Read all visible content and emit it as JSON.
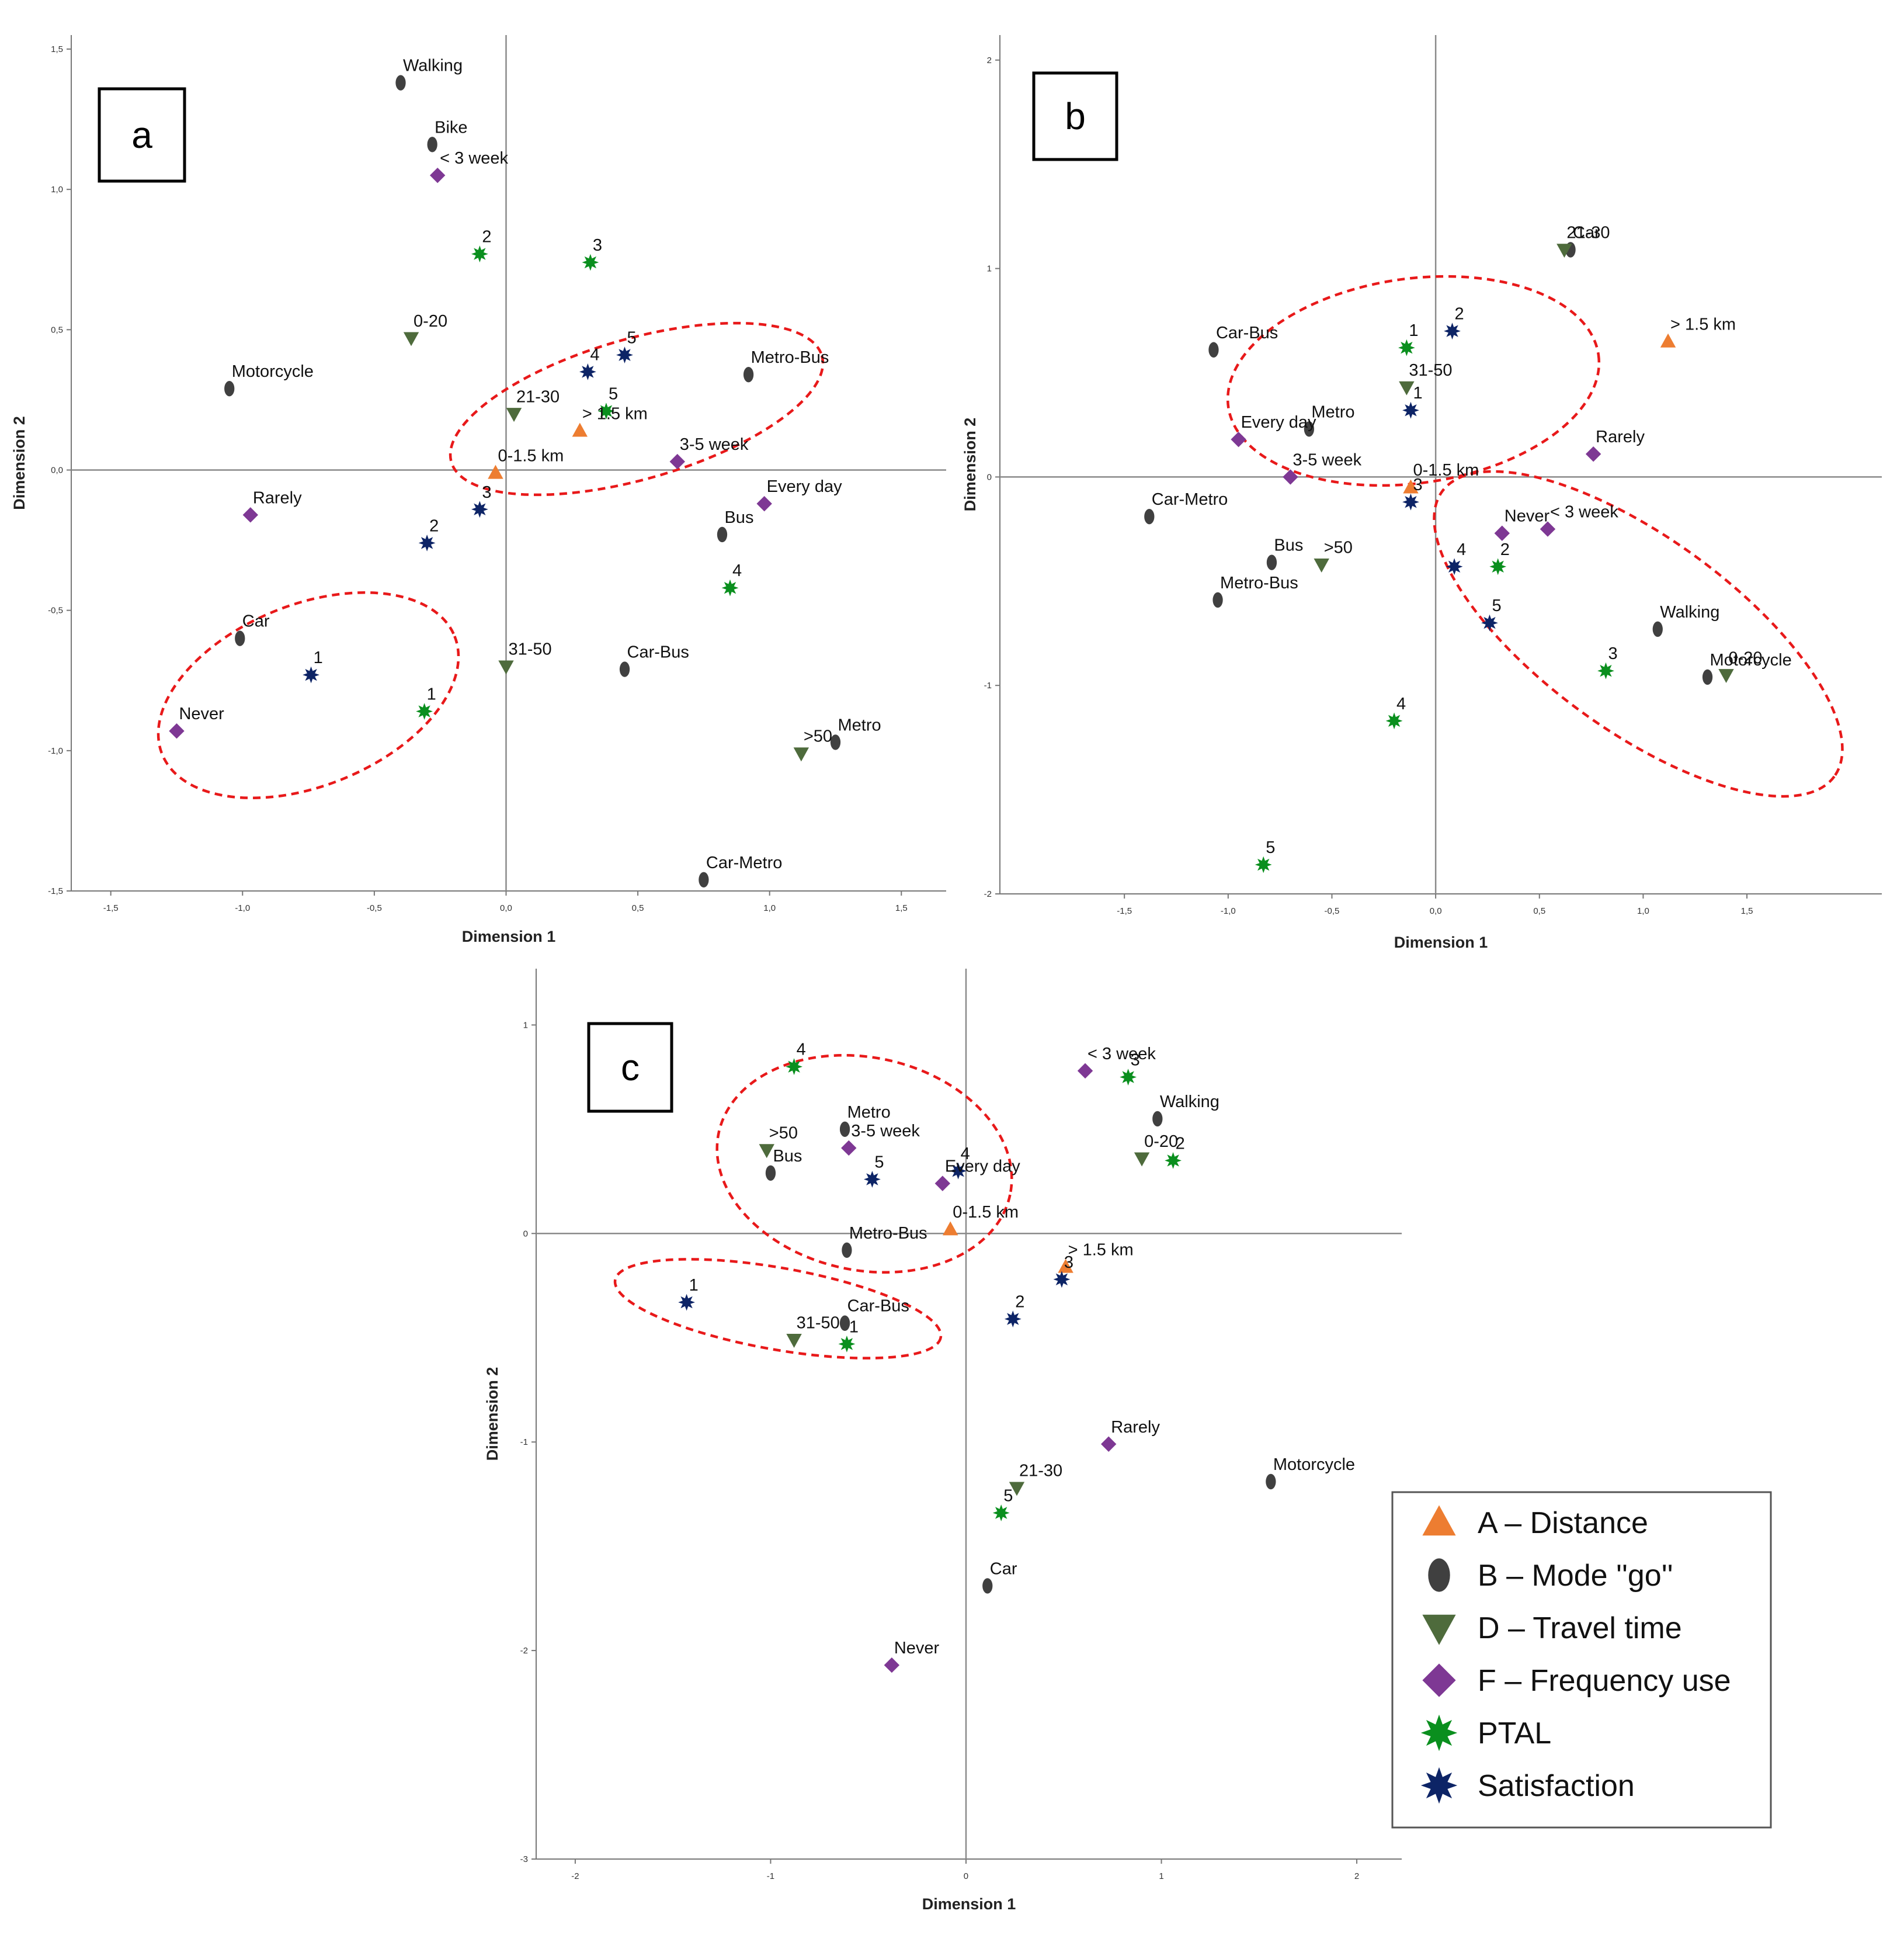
{
  "legend": [
    {
      "code": "A",
      "label": "A – Distance",
      "marker": "triangle-up",
      "color": "#ED7D31"
    },
    {
      "code": "B",
      "label": "B – Mode ''go''",
      "marker": "ellipse",
      "color": "#404040"
    },
    {
      "code": "D",
      "label": "D – Travel time",
      "marker": "triangle-down",
      "color": "#4E6B3C"
    },
    {
      "code": "F",
      "label": "F – Frequency use",
      "marker": "diamond",
      "color": "#7E3894"
    },
    {
      "code": "P",
      "label": "PTAL",
      "marker": "star-burst",
      "color": "#0A8F1E"
    },
    {
      "code": "S",
      "label": "Satisfaction",
      "marker": "star-burst",
      "color": "#0D2466"
    }
  ],
  "chart_data": [
    {
      "panel": "a",
      "type": "scatter",
      "xlabel": "Dimension 1",
      "ylabel": "Dimension 2",
      "xlim": [
        -1.65,
        1.67
      ],
      "ylim": [
        -1.5,
        1.55
      ],
      "xticks": [
        -1.5,
        -1.0,
        -0.5,
        0.0,
        0.5,
        1.0,
        1.5
      ],
      "xtick_labels": [
        "-1,5",
        "-1,0",
        "-0,5",
        "0,0",
        "0,5",
        "1,0",
        "1,5"
      ],
      "yticks": [
        -1.5,
        -1.0,
        -0.5,
        0.0,
        0.5,
        1.0,
        1.5
      ],
      "ytick_labels": [
        "-1,5",
        "-1,0",
        "-0,5",
        "0,0",
        "0,5",
        "1,0",
        "1,5"
      ],
      "points": [
        {
          "group": "B",
          "label": "Walking",
          "x": -0.4,
          "y": 1.38
        },
        {
          "group": "B",
          "label": "Bike",
          "x": -0.28,
          "y": 1.16
        },
        {
          "group": "F",
          "label": "< 3 week",
          "x": -0.26,
          "y": 1.05
        },
        {
          "group": "P",
          "label": "2",
          "x": -0.1,
          "y": 0.77
        },
        {
          "group": "P",
          "label": "3",
          "x": 0.32,
          "y": 0.74
        },
        {
          "group": "D",
          "label": "0-20",
          "x": -0.36,
          "y": 0.47
        },
        {
          "group": "B",
          "label": "Motorcycle",
          "x": -1.05,
          "y": 0.29
        },
        {
          "group": "S",
          "label": "4",
          "x": 0.31,
          "y": 0.35
        },
        {
          "group": "S",
          "label": "5",
          "x": 0.45,
          "y": 0.41
        },
        {
          "group": "B",
          "label": "Metro-Bus",
          "x": 0.92,
          "y": 0.34
        },
        {
          "group": "D",
          "label": "21-30",
          "x": 0.03,
          "y": 0.2
        },
        {
          "group": "P",
          "label": "5",
          "x": 0.38,
          "y": 0.21
        },
        {
          "group": "A",
          "label": "> 1.5 km",
          "x": 0.28,
          "y": 0.14
        },
        {
          "group": "A",
          "label": "0-1.5 km",
          "x": -0.04,
          "y": -0.01
        },
        {
          "group": "F",
          "label": "3-5 week",
          "x": 0.65,
          "y": 0.03
        },
        {
          "group": "F",
          "label": "Every day",
          "x": 0.98,
          "y": -0.12
        },
        {
          "group": "S",
          "label": "3",
          "x": -0.1,
          "y": -0.14
        },
        {
          "group": "F",
          "label": "Rarely",
          "x": -0.97,
          "y": -0.16
        },
        {
          "group": "S",
          "label": "2",
          "x": -0.3,
          "y": -0.26
        },
        {
          "group": "B",
          "label": "Bus",
          "x": 0.82,
          "y": -0.23
        },
        {
          "group": "P",
          "label": "4",
          "x": 0.85,
          "y": -0.42
        },
        {
          "group": "B",
          "label": "Car",
          "x": -1.01,
          "y": -0.6
        },
        {
          "group": "S",
          "label": "1",
          "x": -0.74,
          "y": -0.73
        },
        {
          "group": "D",
          "label": "31-50",
          "x": 0.0,
          "y": -0.7
        },
        {
          "group": "B",
          "label": "Car-Bus",
          "x": 0.45,
          "y": -0.71
        },
        {
          "group": "P",
          "label": "1",
          "x": -0.31,
          "y": -0.86
        },
        {
          "group": "F",
          "label": "Never",
          "x": -1.25,
          "y": -0.93
        },
        {
          "group": "B",
          "label": "Metro",
          "x": 1.25,
          "y": -0.97
        },
        {
          "group": "D",
          "label": ">50",
          "x": 1.12,
          "y": -1.01
        },
        {
          "group": "B",
          "label": "Car-Metro",
          "x": 0.75,
          "y": -1.46
        }
      ]
    },
    {
      "panel": "b",
      "type": "scatter",
      "xlabel": "Dimension 1",
      "ylabel": "Dimension 2",
      "xlim": [
        -2.1,
        2.15
      ],
      "ylim": [
        -2.0,
        2.12
      ],
      "xticks": [
        -1.5,
        -1.0,
        -0.5,
        0.0,
        0.5,
        1.0,
        1.5
      ],
      "xtick_labels": [
        "-1,5",
        "-1,0",
        "-0,5",
        "0,0",
        "0,5",
        "1,0",
        "1,5"
      ],
      "yticks": [
        -2,
        -1,
        0,
        1,
        2
      ],
      "ytick_labels": [
        "-2",
        "-1",
        "0",
        "1",
        "2"
      ],
      "points": [
        {
          "group": "B",
          "label": "Car",
          "x": 0.65,
          "y": 1.09
        },
        {
          "group": "D",
          "label": "21-30",
          "x": 0.62,
          "y": 1.09
        },
        {
          "group": "A",
          "label": "> 1.5 km",
          "x": 1.12,
          "y": 0.65
        },
        {
          "group": "B",
          "label": "Car-Bus",
          "x": -1.07,
          "y": 0.61
        },
        {
          "group": "P",
          "label": "1",
          "x": -0.14,
          "y": 0.62
        },
        {
          "group": "S",
          "label": "2",
          "x": 0.08,
          "y": 0.7
        },
        {
          "group": "D",
          "label": "31-50",
          "x": -0.14,
          "y": 0.43
        },
        {
          "group": "S",
          "label": "1",
          "x": -0.12,
          "y": 0.32
        },
        {
          "group": "B",
          "label": "Metro",
          "x": -0.61,
          "y": 0.23
        },
        {
          "group": "F",
          "label": "Every day",
          "x": -0.95,
          "y": 0.18
        },
        {
          "group": "F",
          "label": "Rarely",
          "x": 0.76,
          "y": 0.11
        },
        {
          "group": "F",
          "label": "3-5 week",
          "x": -0.7,
          "y": 0.0
        },
        {
          "group": "A",
          "label": "0-1.5 km",
          "x": -0.12,
          "y": -0.05
        },
        {
          "group": "S",
          "label": "3",
          "x": -0.12,
          "y": -0.12
        },
        {
          "group": "B",
          "label": "Car-Metro",
          "x": -1.38,
          "y": -0.19
        },
        {
          "group": "F",
          "label": "Never",
          "x": 0.32,
          "y": -0.27
        },
        {
          "group": "F",
          "label": "< 3 week",
          "x": 0.54,
          "y": -0.25
        },
        {
          "group": "B",
          "label": "Bus",
          "x": -0.79,
          "y": -0.41
        },
        {
          "group": "D",
          "label": ">50",
          "x": -0.55,
          "y": -0.42
        },
        {
          "group": "S",
          "label": "4",
          "x": 0.09,
          "y": -0.43
        },
        {
          "group": "P",
          "label": "2",
          "x": 0.3,
          "y": -0.43
        },
        {
          "group": "B",
          "label": "Metro-Bus",
          "x": -1.05,
          "y": -0.59
        },
        {
          "group": "S",
          "label": "5",
          "x": 0.26,
          "y": -0.7
        },
        {
          "group": "B",
          "label": "Walking",
          "x": 1.07,
          "y": -0.73
        },
        {
          "group": "P",
          "label": "3",
          "x": 0.82,
          "y": -0.93
        },
        {
          "group": "B",
          "label": "Motorcycle",
          "x": 1.31,
          "y": -0.96
        },
        {
          "group": "D",
          "label": "0-20",
          "x": 1.4,
          "y": -0.95
        },
        {
          "group": "P",
          "label": "4",
          "x": -0.2,
          "y": -1.17
        },
        {
          "group": "P",
          "label": "5",
          "x": -0.83,
          "y": -1.86
        }
      ]
    },
    {
      "panel": "c",
      "type": "scatter",
      "xlabel": "Dimension 1",
      "ylabel": "Dimension 2",
      "xlim": [
        -2.2,
        2.23
      ],
      "ylim": [
        -3.0,
        1.27
      ],
      "xticks": [
        -2,
        -1,
        0,
        1,
        2
      ],
      "xtick_labels": [
        "-2",
        "-1",
        "0",
        "1",
        "2"
      ],
      "yticks": [
        -3,
        -2,
        -1,
        0,
        1
      ],
      "ytick_labels": [
        "-3",
        "-2",
        "-1",
        "0",
        "1"
      ],
      "points": [
        {
          "group": "P",
          "label": "4",
          "x": -0.88,
          "y": 0.8
        },
        {
          "group": "F",
          "label": "< 3 week",
          "x": 0.61,
          "y": 0.78
        },
        {
          "group": "P",
          "label": "3",
          "x": 0.83,
          "y": 0.75
        },
        {
          "group": "B",
          "label": "Walking",
          "x": 0.98,
          "y": 0.55
        },
        {
          "group": "B",
          "label": "Metro",
          "x": -0.62,
          "y": 0.5
        },
        {
          "group": "D",
          "label": ">50",
          "x": -1.02,
          "y": 0.4
        },
        {
          "group": "F",
          "label": "3-5 week",
          "x": -0.6,
          "y": 0.41
        },
        {
          "group": "S",
          "label": "4",
          "x": -0.04,
          "y": 0.3
        },
        {
          "group": "D",
          "label": "0-20",
          "x": 0.9,
          "y": 0.36
        },
        {
          "group": "P",
          "label": "2",
          "x": 1.06,
          "y": 0.35
        },
        {
          "group": "B",
          "label": "Bus",
          "x": -1.0,
          "y": 0.29
        },
        {
          "group": "S",
          "label": "5",
          "x": -0.48,
          "y": 0.26
        },
        {
          "group": "F",
          "label": "Every day",
          "x": -0.12,
          "y": 0.24
        },
        {
          "group": "A",
          "label": "0-1.5 km",
          "x": -0.08,
          "y": 0.02
        },
        {
          "group": "B",
          "label": "Metro-Bus",
          "x": -0.61,
          "y": -0.08
        },
        {
          "group": "A",
          "label": "> 1.5 km",
          "x": 0.51,
          "y": -0.16
        },
        {
          "group": "S",
          "label": "3",
          "x": 0.49,
          "y": -0.22
        },
        {
          "group": "S",
          "label": "1",
          "x": -1.43,
          "y": -0.33
        },
        {
          "group": "S",
          "label": "2",
          "x": 0.24,
          "y": -0.41
        },
        {
          "group": "B",
          "label": "Car-Bus",
          "x": -0.62,
          "y": -0.43
        },
        {
          "group": "D",
          "label": "31-50",
          "x": -0.88,
          "y": -0.51
        },
        {
          "group": "P",
          "label": "1",
          "x": -0.61,
          "y": -0.53
        },
        {
          "group": "F",
          "label": "Rarely",
          "x": 0.73,
          "y": -1.01
        },
        {
          "group": "B",
          "label": "Motorcycle",
          "x": 1.56,
          "y": -1.19
        },
        {
          "group": "D",
          "label": "21-30",
          "x": 0.26,
          "y": -1.22
        },
        {
          "group": "P",
          "label": "5",
          "x": 0.18,
          "y": -1.34
        },
        {
          "group": "B",
          "label": "Car",
          "x": 0.11,
          "y": -1.69
        },
        {
          "group": "F",
          "label": "Never",
          "x": -0.38,
          "y": -2.07
        }
      ]
    }
  ]
}
